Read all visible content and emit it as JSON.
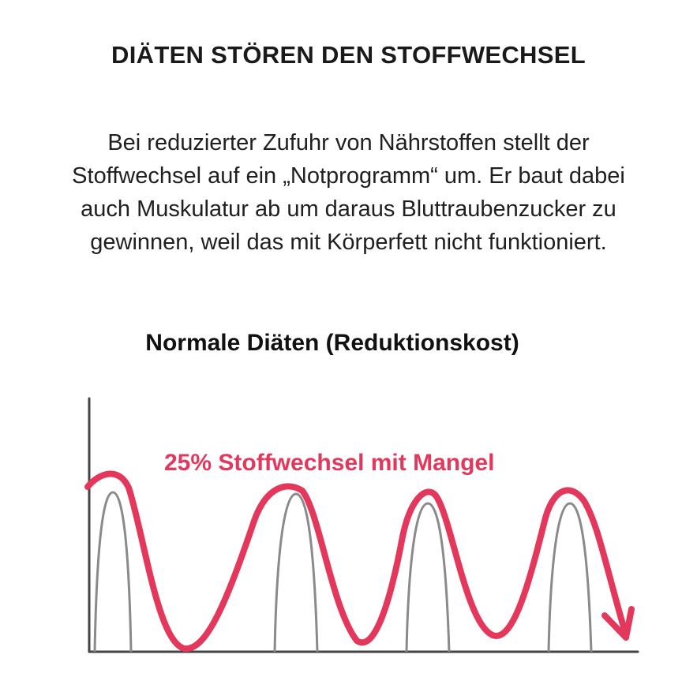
{
  "title": "DIÄTEN STÖREN DEN STOFFWECHSEL",
  "paragraph": {
    "lines": [
      "Bei reduzierter Zufuhr von Nährstoffen stellt der",
      "Stoffwechsel auf ein „Notprogramm“ um. Er baut dabei",
      "auch Muskulatur ab um daraus Bluttraubenzucker zu",
      "gewinnen, weil das mit Körperfett nicht funktioniert."
    ]
  },
  "diagram": {
    "title": "Normale Diäten (Reduktionskost)",
    "annotation": "25% Stoffwechsel mit Mangel",
    "colors": {
      "wave": "#e3385c",
      "arches": "#8a8a8a",
      "axes": "#444444",
      "annotation": "#e3385c"
    }
  }
}
